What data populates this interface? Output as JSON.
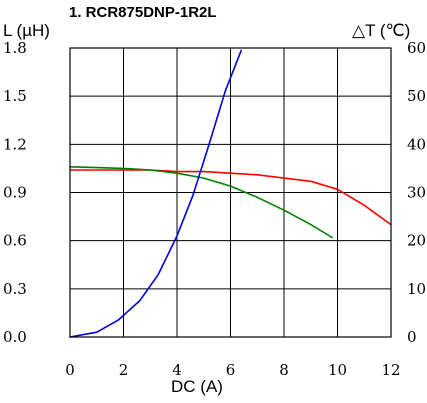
{
  "chart_data": {
    "type": "line",
    "title": "1. RCR875DNP-1R2L",
    "xlabel": "DC (A)",
    "ylabel_left": "L (µH)",
    "ylabel_right": "△T (℃)",
    "xlim": [
      0,
      12
    ],
    "ylim_left": [
      0,
      1.8
    ],
    "ylim_right": [
      0,
      60
    ],
    "x_ticks": [
      "0",
      "2",
      "4",
      "6",
      "8",
      "10",
      "12"
    ],
    "y_left_ticks": [
      "0.0",
      "0.3",
      "0.6",
      "0.9",
      "1.2",
      "1.5",
      "1.8"
    ],
    "y_right_ticks": [
      "0",
      "10",
      "20",
      "30",
      "40",
      "50",
      "60"
    ],
    "grid": true,
    "series": [
      {
        "axis": "left",
        "color": "#ff0000",
        "x": [
          0,
          1,
          2,
          3,
          4,
          5,
          6,
          7,
          8,
          9,
          10,
          11,
          12
        ],
        "y": [
          1.04,
          1.04,
          1.04,
          1.04,
          1.03,
          1.03,
          1.02,
          1.01,
          0.99,
          0.97,
          0.92,
          0.82,
          0.7
        ]
      },
      {
        "axis": "left",
        "color": "#008000",
        "x": [
          0,
          1,
          2,
          3,
          4,
          5,
          6,
          7,
          8,
          9,
          9.8
        ],
        "y": [
          1.06,
          1.055,
          1.05,
          1.04,
          1.02,
          0.99,
          0.94,
          0.87,
          0.79,
          0.7,
          0.62
        ]
      },
      {
        "axis": "right",
        "color": "#0000dd",
        "x": [
          0,
          1,
          1.8,
          2.6,
          3.3,
          4,
          4.6,
          5.2,
          5.8,
          6.4
        ],
        "y": [
          0,
          1,
          3.5,
          7.5,
          13,
          21,
          29.5,
          40,
          51,
          59.5
        ]
      }
    ]
  }
}
